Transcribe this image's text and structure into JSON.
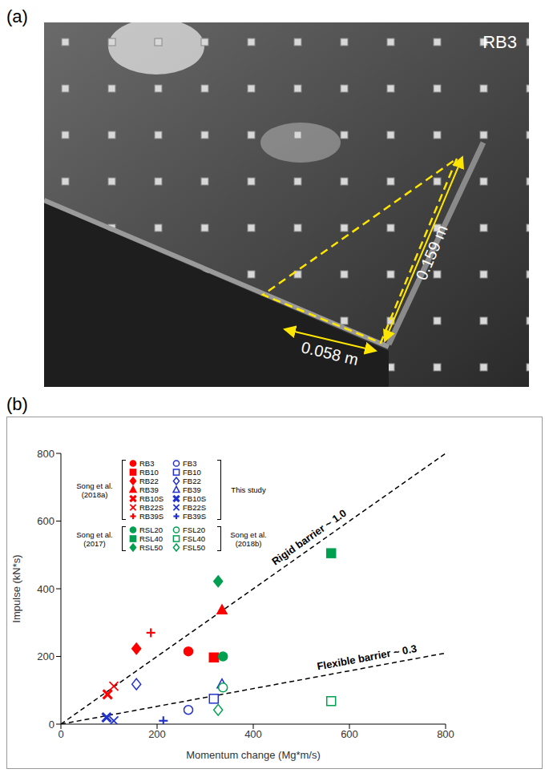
{
  "panel_a": {
    "label": "(a)",
    "photo_label": "RB3",
    "dimensions": [
      "0.058 m",
      "0.159 m"
    ]
  },
  "chart_data": {
    "type": "scatter",
    "panel_label": "(b)",
    "x_label": "Momentum change (Mg*m/s)",
    "y_label": "Impulse (kN*s)",
    "xlim": [
      0,
      800
    ],
    "ylim": [
      0,
      800
    ],
    "xticks": [
      0,
      200,
      400,
      600,
      800
    ],
    "yticks": [
      0,
      200,
      400,
      600,
      800
    ],
    "grid": false,
    "legend": "upper left",
    "series": [
      {
        "name": "RB3",
        "color": "#ff0000",
        "marker": "circle",
        "x": [
          265
        ],
        "values": [
          215
        ]
      },
      {
        "name": "RB10",
        "color": "#ff0000",
        "marker": "square",
        "x": [
          318
        ],
        "values": [
          197
        ]
      },
      {
        "name": "RB22",
        "color": "#ff0000",
        "marker": "diamond",
        "x": [
          157
        ],
        "values": [
          223
        ]
      },
      {
        "name": "RB39",
        "color": "#ff0000",
        "marker": "triangle",
        "x": [
          335
        ],
        "values": [
          337
        ]
      },
      {
        "name": "RB10S",
        "color": "#ff0000",
        "marker": "thick_x",
        "x": [
          97
        ],
        "values": [
          88
        ]
      },
      {
        "name": "RB22S",
        "color": "#ff0000",
        "marker": "x",
        "x": [
          110
        ],
        "values": [
          112
        ]
      },
      {
        "name": "RB39S",
        "color": "#ff0000",
        "marker": "plus",
        "x": [
          187
        ],
        "values": [
          270
        ]
      },
      {
        "name": "FB3",
        "color": "#2233cc",
        "marker": "open_circle",
        "x": [
          265
        ],
        "values": [
          42
        ]
      },
      {
        "name": "FB10",
        "color": "#2233cc",
        "marker": "open_square",
        "x": [
          318
        ],
        "values": [
          75
        ]
      },
      {
        "name": "FB22",
        "color": "#2233cc",
        "marker": "open_diamond",
        "x": [
          157
        ],
        "values": [
          118
        ]
      },
      {
        "name": "FB39",
        "color": "#2233cc",
        "marker": "open_triangle",
        "x": [
          335
        ],
        "values": [
          118
        ]
      },
      {
        "name": "FB10S",
        "color": "#2233cc",
        "marker": "thick_x",
        "x": [
          95
        ],
        "values": [
          20
        ]
      },
      {
        "name": "FB22S",
        "color": "#2233cc",
        "marker": "x",
        "x": [
          110
        ],
        "values": [
          10
        ]
      },
      {
        "name": "FB39S",
        "color": "#2233cc",
        "marker": "plus",
        "x": [
          213
        ],
        "values": [
          10
        ]
      },
      {
        "name": "RSL20",
        "color": "#00a050",
        "marker": "circle",
        "x": [
          337
        ],
        "values": [
          200
        ]
      },
      {
        "name": "RSL40",
        "color": "#00a050",
        "marker": "square",
        "x": [
          562
        ],
        "values": [
          505
        ]
      },
      {
        "name": "RSL50",
        "color": "#00a050",
        "marker": "diamond",
        "x": [
          327
        ],
        "values": [
          422
        ]
      },
      {
        "name": "FSL20",
        "color": "#00a050",
        "marker": "open_circle",
        "x": [
          337
        ],
        "values": [
          108
        ]
      },
      {
        "name": "FSL40",
        "color": "#00a050",
        "marker": "open_square",
        "x": [
          562
        ],
        "values": [
          68
        ]
      },
      {
        "name": "FSL50",
        "color": "#00a050",
        "marker": "open_diamond",
        "x": [
          327
        ],
        "values": [
          42
        ]
      }
    ],
    "legend_columns": [
      [
        {
          "label": "Song et al. (2018a)",
          "series": [
            "RB3",
            "RB10",
            "RB22",
            "RB39",
            "RB10S",
            "RB22S",
            "RB39S"
          ]
        },
        {
          "label": "Song et al. (2017)",
          "series": [
            "RSL20",
            "RSL40",
            "RSL50"
          ]
        }
      ],
      [
        {
          "label": "This study",
          "series": [
            "FB3",
            "FB10",
            "FB22",
            "FB39",
            "FB10S",
            "FB22S",
            "FB39S"
          ]
        },
        {
          "label": "Song et al. (2018b)",
          "series": [
            "FSL20",
            "FSL40",
            "FSL50"
          ]
        }
      ]
    ],
    "reference_lines": [
      {
        "label": "Rigid barrier ~ 1.0",
        "x": [
          0,
          800
        ],
        "values": [
          0,
          800
        ],
        "line_style": "dashed",
        "color": "#000000"
      },
      {
        "label": "Flexible barrier ~ 0.3",
        "x": [
          0,
          800
        ],
        "values": [
          0,
          210
        ],
        "line_style": "dashed",
        "color": "#000000"
      }
    ]
  }
}
